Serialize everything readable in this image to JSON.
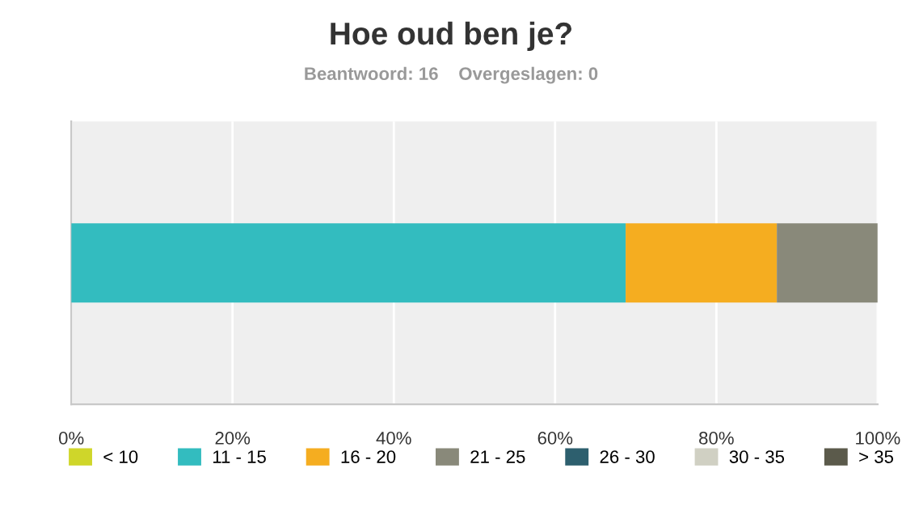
{
  "chart_data": {
    "type": "bar",
    "orientation": "horizontal",
    "stacked": true,
    "title": "Hoe oud ben je?",
    "subtitle": "Beantwoord: 16    Overgeslagen: 0",
    "categories": [
      null
    ],
    "series": [
      {
        "name": "< 10",
        "color": "#cfd62a",
        "values": [
          0
        ]
      },
      {
        "name": "11 - 15",
        "color": "#33bcbf",
        "values": [
          68.75
        ]
      },
      {
        "name": "16 - 20",
        "color": "#f5ad20",
        "values": [
          18.75
        ]
      },
      {
        "name": "21 - 25",
        "color": "#89897a",
        "values": [
          12.5
        ]
      },
      {
        "name": "26 - 30",
        "color": "#2d5f6e",
        "values": [
          0
        ]
      },
      {
        "name": "30 - 35",
        "color": "#d0d0c3",
        "values": [
          0
        ]
      },
      {
        "name": "> 35",
        "color": "#5b5a4b",
        "values": [
          0
        ]
      }
    ],
    "xlim": [
      0,
      100
    ],
    "xticks": [
      {
        "value": 0,
        "label": "0%"
      },
      {
        "value": 20,
        "label": "20%"
      },
      {
        "value": 40,
        "label": "40%"
      },
      {
        "value": 60,
        "label": "60%"
      },
      {
        "value": 80,
        "label": "80%"
      },
      {
        "value": 100,
        "label": "100%"
      }
    ],
    "grid": "x",
    "legend": "bottom"
  }
}
